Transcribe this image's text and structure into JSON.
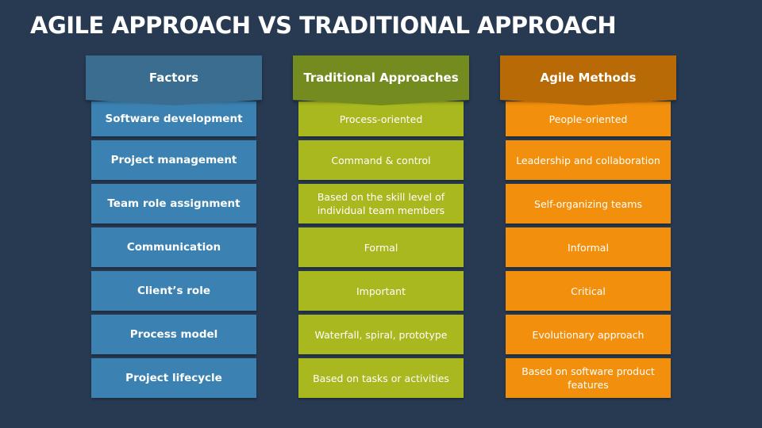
{
  "title": "AGILE APPROACH VS TRADITIONAL APPROACH",
  "columns": [
    {
      "header": "Factors",
      "cells": [
        "Software development",
        "Project management",
        "Team role assignment",
        "Communication",
        "Client’s role",
        "Process model",
        "Project lifecycle"
      ]
    },
    {
      "header": "Traditional Approaches",
      "cells": [
        "Process-oriented",
        "Command & control",
        "Based on the skill level of individual team members",
        "Formal",
        "Important",
        "Waterfall, spiral, prototype",
        "Based on tasks or activities"
      ]
    },
    {
      "header": "Agile Methods",
      "cells": [
        "People-oriented",
        "Leadership and collaboration",
        "Self-organizing teams",
        "Informal",
        "Critical",
        "Evolutionary approach",
        "Based on software product features"
      ]
    }
  ],
  "colors": {
    "background": "#283a52",
    "factors_header": "#3a6d8f",
    "factors_cell": "#3b82b2",
    "traditional_header": "#738b1f",
    "traditional_cell": "#a8b81e",
    "agile_header": "#b86a06",
    "agile_cell": "#f28f0c"
  }
}
